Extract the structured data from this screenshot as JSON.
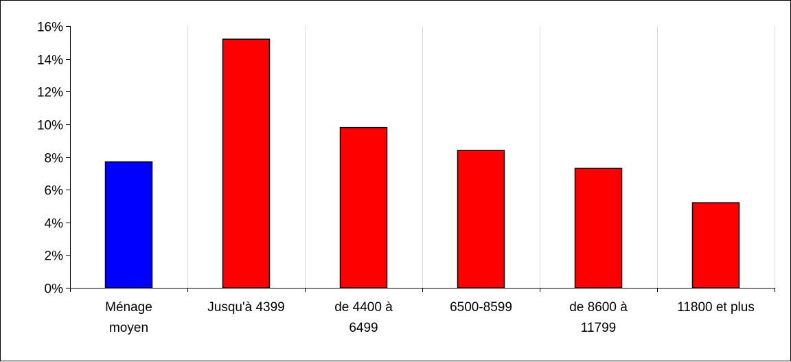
{
  "chart_data": {
    "type": "bar",
    "categories": [
      [
        "Ménage",
        "moyen"
      ],
      [
        "Jusqu'à 4399"
      ],
      [
        "de 4400 à",
        "6499"
      ],
      [
        "6500-8599"
      ],
      [
        "de 8600 à",
        "11799"
      ],
      [
        "11800 et plus"
      ]
    ],
    "values": [
      7.7,
      15.2,
      9.8,
      8.4,
      7.3,
      5.2
    ],
    "colors": [
      "#0000FF",
      "#FF0000",
      "#FF0000",
      "#FF0000",
      "#FF0000",
      "#FF0000"
    ],
    "ylim": [
      0,
      16
    ],
    "yticks": [
      0,
      2,
      4,
      6,
      8,
      10,
      12,
      14,
      16
    ],
    "ytick_labels": [
      "0%",
      "2%",
      "4%",
      "6%",
      "8%",
      "10%",
      "12%",
      "14%",
      "16%"
    ],
    "title": "",
    "xlabel": "",
    "ylabel": "",
    "grid": "vertical",
    "legend": "none"
  }
}
